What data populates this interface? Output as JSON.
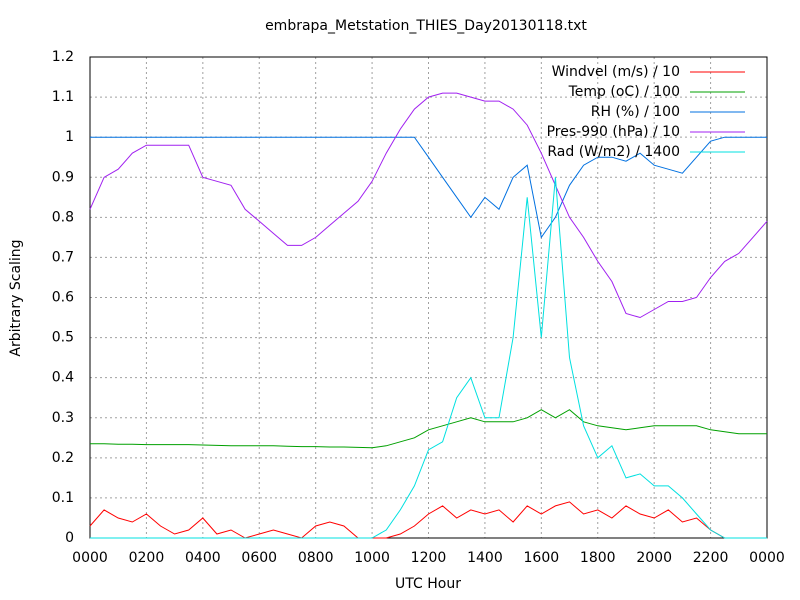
{
  "chart_data": {
    "type": "line",
    "title": "embrapa_Metstation_THIES_Day20130118.txt",
    "xlabel": "UTC Hour",
    "ylabel": "Arbitrary Scaling",
    "x": [
      0,
      0.5,
      1,
      1.5,
      2,
      2.5,
      3,
      3.5,
      4,
      4.5,
      5,
      5.5,
      6,
      6.5,
      7,
      7.5,
      8,
      8.5,
      9,
      9.5,
      10,
      10.5,
      11,
      11.5,
      12,
      12.5,
      13,
      13.5,
      14,
      14.5,
      15,
      15.5,
      16,
      16.5,
      17,
      17.5,
      18,
      18.5,
      19,
      19.5,
      20,
      20.5,
      21,
      21.5,
      22,
      22.5,
      23,
      23.5,
      24
    ],
    "series": [
      {
        "name": "Windvel (m/s) / 10",
        "color": "#ff0000",
        "values": [
          0.03,
          0.07,
          0.05,
          0.04,
          0.06,
          0.03,
          0.01,
          0.02,
          0.05,
          0.01,
          0.02,
          0,
          0.01,
          0.02,
          0.01,
          0,
          0.03,
          0.04,
          0.03,
          0,
          0,
          0,
          0.01,
          0.03,
          0.06,
          0.08,
          0.05,
          0.07,
          0.06,
          0.07,
          0.04,
          0.08,
          0.06,
          0.08,
          0.09,
          0.06,
          0.07,
          0.05,
          0.08,
          0.06,
          0.05,
          0.07,
          0.04,
          0.05,
          0.02,
          0,
          0,
          0,
          0
        ]
      },
      {
        "name": "Temp (oC) / 100",
        "color": "#00a000",
        "values": [
          0.235,
          0.235,
          0.234,
          0.234,
          0.233,
          0.233,
          0.233,
          0.233,
          0.232,
          0.231,
          0.23,
          0.23,
          0.23,
          0.23,
          0.229,
          0.228,
          0.228,
          0.227,
          0.227,
          0.226,
          0.225,
          0.23,
          0.24,
          0.25,
          0.27,
          0.28,
          0.29,
          0.3,
          0.29,
          0.29,
          0.29,
          0.3,
          0.32,
          0.3,
          0.32,
          0.29,
          0.28,
          0.275,
          0.27,
          0.275,
          0.28,
          0.28,
          0.28,
          0.28,
          0.27,
          0.265,
          0.26,
          0.26,
          0.26
        ]
      },
      {
        "name": "RH (%) / 100",
        "color": "#0070e0",
        "values": [
          1,
          1,
          1,
          1,
          1,
          1,
          1,
          1,
          1,
          1,
          1,
          1,
          1,
          1,
          1,
          1,
          1,
          1,
          1,
          1,
          1,
          1,
          1,
          1,
          0.95,
          0.9,
          0.85,
          0.8,
          0.85,
          0.82,
          0.9,
          0.93,
          0.75,
          0.8,
          0.88,
          0.93,
          0.95,
          0.95,
          0.94,
          0.96,
          0.93,
          0.92,
          0.91,
          0.95,
          0.99,
          1,
          1,
          1,
          1
        ]
      },
      {
        "name": "Pres-990 (hPa) / 10",
        "color": "#a020f0",
        "values": [
          0.82,
          0.9,
          0.92,
          0.96,
          0.98,
          0.98,
          0.98,
          0.98,
          0.9,
          0.89,
          0.88,
          0.82,
          0.79,
          0.76,
          0.73,
          0.73,
          0.75,
          0.78,
          0.81,
          0.84,
          0.89,
          0.96,
          1.02,
          1.07,
          1.1,
          1.11,
          1.11,
          1.1,
          1.09,
          1.09,
          1.07,
          1.03,
          0.96,
          0.88,
          0.8,
          0.75,
          0.69,
          0.64,
          0.56,
          0.55,
          0.57,
          0.59,
          0.59,
          0.6,
          0.65,
          0.69,
          0.71,
          0.75,
          0.79
        ]
      },
      {
        "name": "Rad (W/m2) / 1400",
        "color": "#00e0e0",
        "values": [
          0,
          0,
          0,
          0,
          0,
          0,
          0,
          0,
          0,
          0,
          0,
          0,
          0,
          0,
          0,
          0,
          0,
          0,
          0,
          0,
          0,
          0.02,
          0.07,
          0.13,
          0.22,
          0.24,
          0.35,
          0.4,
          0.3,
          0.3,
          0.5,
          0.85,
          0.5,
          0.9,
          0.45,
          0.28,
          0.2,
          0.23,
          0.15,
          0.16,
          0.13,
          0.13,
          0.1,
          0.06,
          0.02,
          0,
          0,
          0,
          0
        ]
      }
    ],
    "xlim": [
      0,
      24
    ],
    "xticks": [
      {
        "value": 0,
        "label": "0000"
      },
      {
        "value": 2,
        "label": "0200"
      },
      {
        "value": 4,
        "label": "0400"
      },
      {
        "value": 6,
        "label": "0600"
      },
      {
        "value": 8,
        "label": "0800"
      },
      {
        "value": 10,
        "label": "1000"
      },
      {
        "value": 12,
        "label": "1200"
      },
      {
        "value": 14,
        "label": "1400"
      },
      {
        "value": 16,
        "label": "1600"
      },
      {
        "value": 18,
        "label": "1800"
      },
      {
        "value": 20,
        "label": "2000"
      },
      {
        "value": 22,
        "label": "2200"
      },
      {
        "value": 24,
        "label": "0000"
      }
    ],
    "ylim": [
      0,
      1.2
    ],
    "yticks": [
      0,
      0.1,
      0.2,
      0.3,
      0.4,
      0.5,
      0.6,
      0.7,
      0.8,
      0.9,
      1,
      1.1,
      1.2
    ],
    "grid": true,
    "legend": "top-right"
  }
}
